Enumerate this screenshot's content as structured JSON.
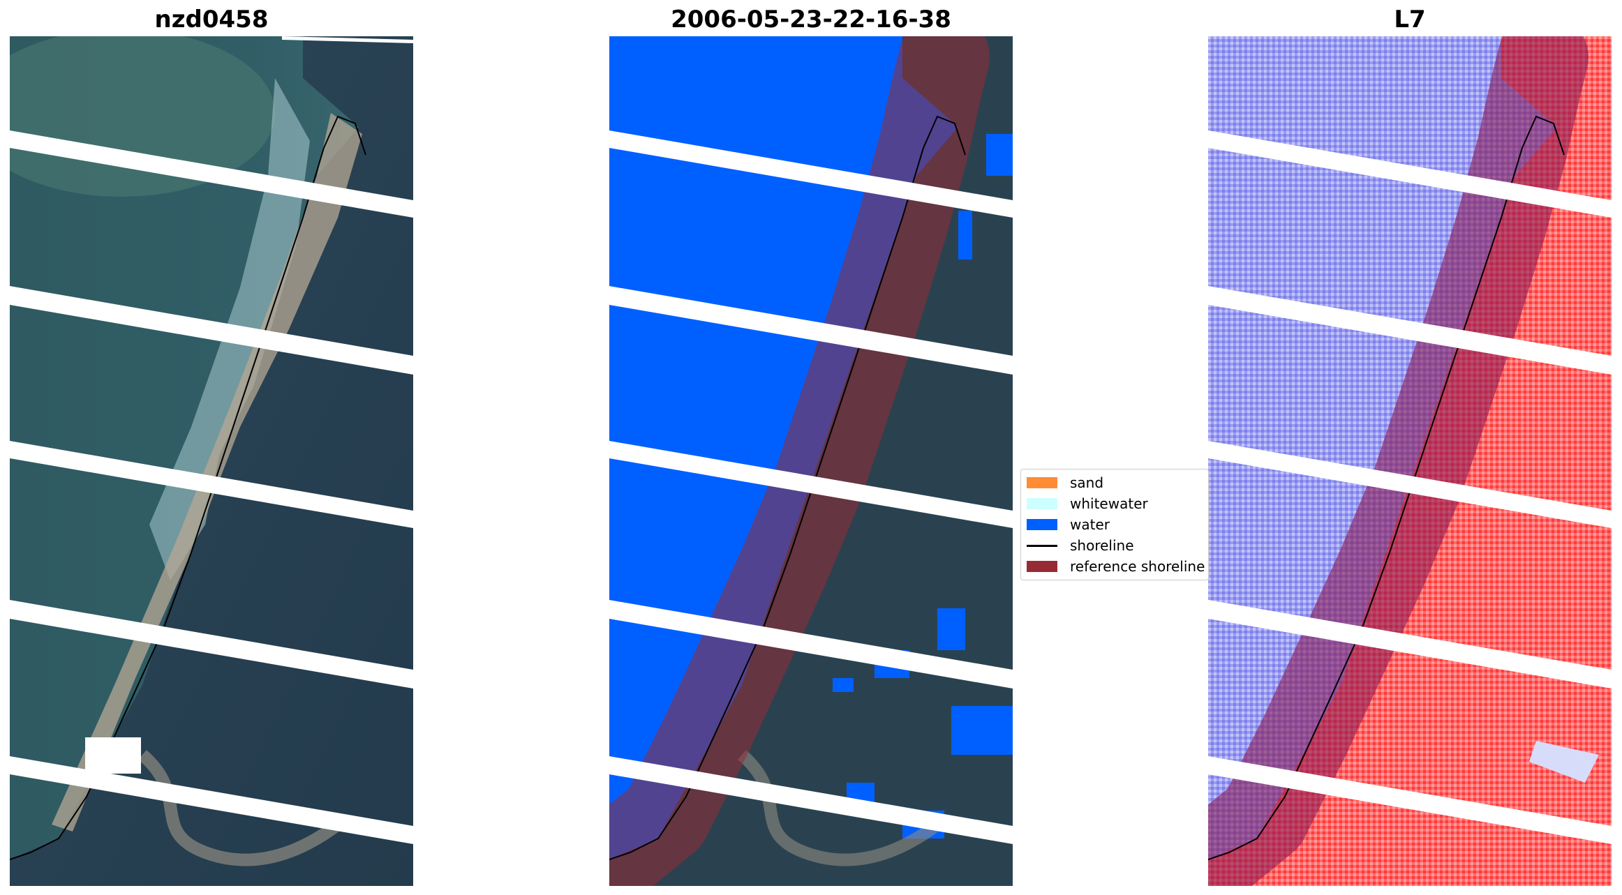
{
  "panels": [
    {
      "title": "nzd0458"
    },
    {
      "title": "2006-05-23-22-16-38"
    },
    {
      "title": "L7"
    }
  ],
  "legend": {
    "items": [
      {
        "label": "sand",
        "color": "#ff8c35",
        "kind": "patch"
      },
      {
        "label": "whitewater",
        "color": "#ccffff",
        "kind": "patch"
      },
      {
        "label": "water",
        "color": "#0060ff",
        "kind": "patch"
      },
      {
        "label": "shoreline",
        "color": "#000000",
        "kind": "line"
      },
      {
        "label": "reference shoreline",
        "color": "#962b34",
        "kind": "patch"
      }
    ]
  }
}
